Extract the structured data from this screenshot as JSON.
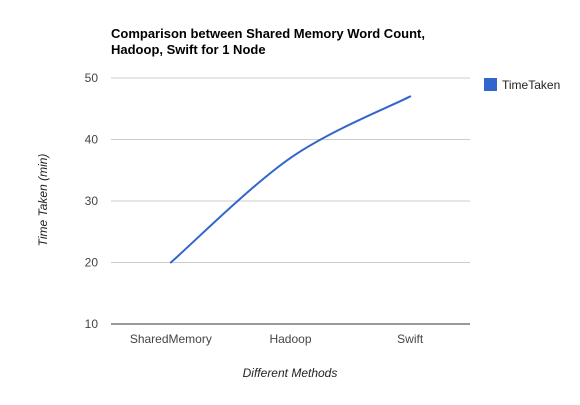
{
  "chart_data": {
    "type": "line",
    "title_lines": [
      "Comparison between Shared Memory Word Count,",
      "Hadoop, Swift for 1 Node"
    ],
    "xlabel": "Different Methods",
    "ylabel": "Time Taken (min)",
    "categories": [
      "SharedMemory",
      "Hadoop",
      "Swift"
    ],
    "series": [
      {
        "name": "TimeTaken",
        "values": [
          20,
          37,
          47
        ],
        "color": "#3366cc"
      }
    ],
    "ylim": [
      10,
      50
    ],
    "yticks": [
      10,
      20,
      30,
      40,
      50
    ],
    "ytick_labels": [
      "10",
      "20",
      "30",
      "40",
      "50"
    ],
    "grid": true,
    "legend_position": "right"
  }
}
